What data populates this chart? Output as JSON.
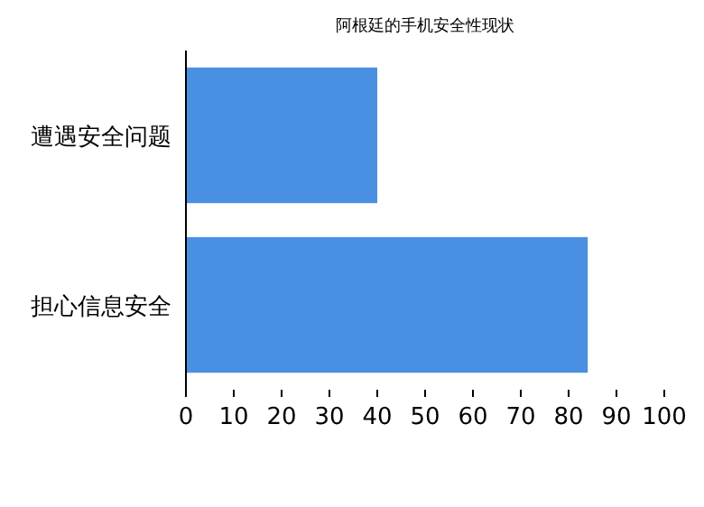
{
  "chart_data": {
    "type": "bar",
    "orientation": "horizontal",
    "title": "阿根廷的手机安全性现状",
    "categories": [
      "遭遇安全问题",
      "担心信息安全"
    ],
    "values": [
      40,
      84
    ],
    "color": "#4a90e2",
    "xlim": [
      0,
      100
    ],
    "xticks": [
      0,
      10,
      20,
      30,
      40,
      50,
      60,
      70,
      80,
      90,
      100
    ]
  }
}
